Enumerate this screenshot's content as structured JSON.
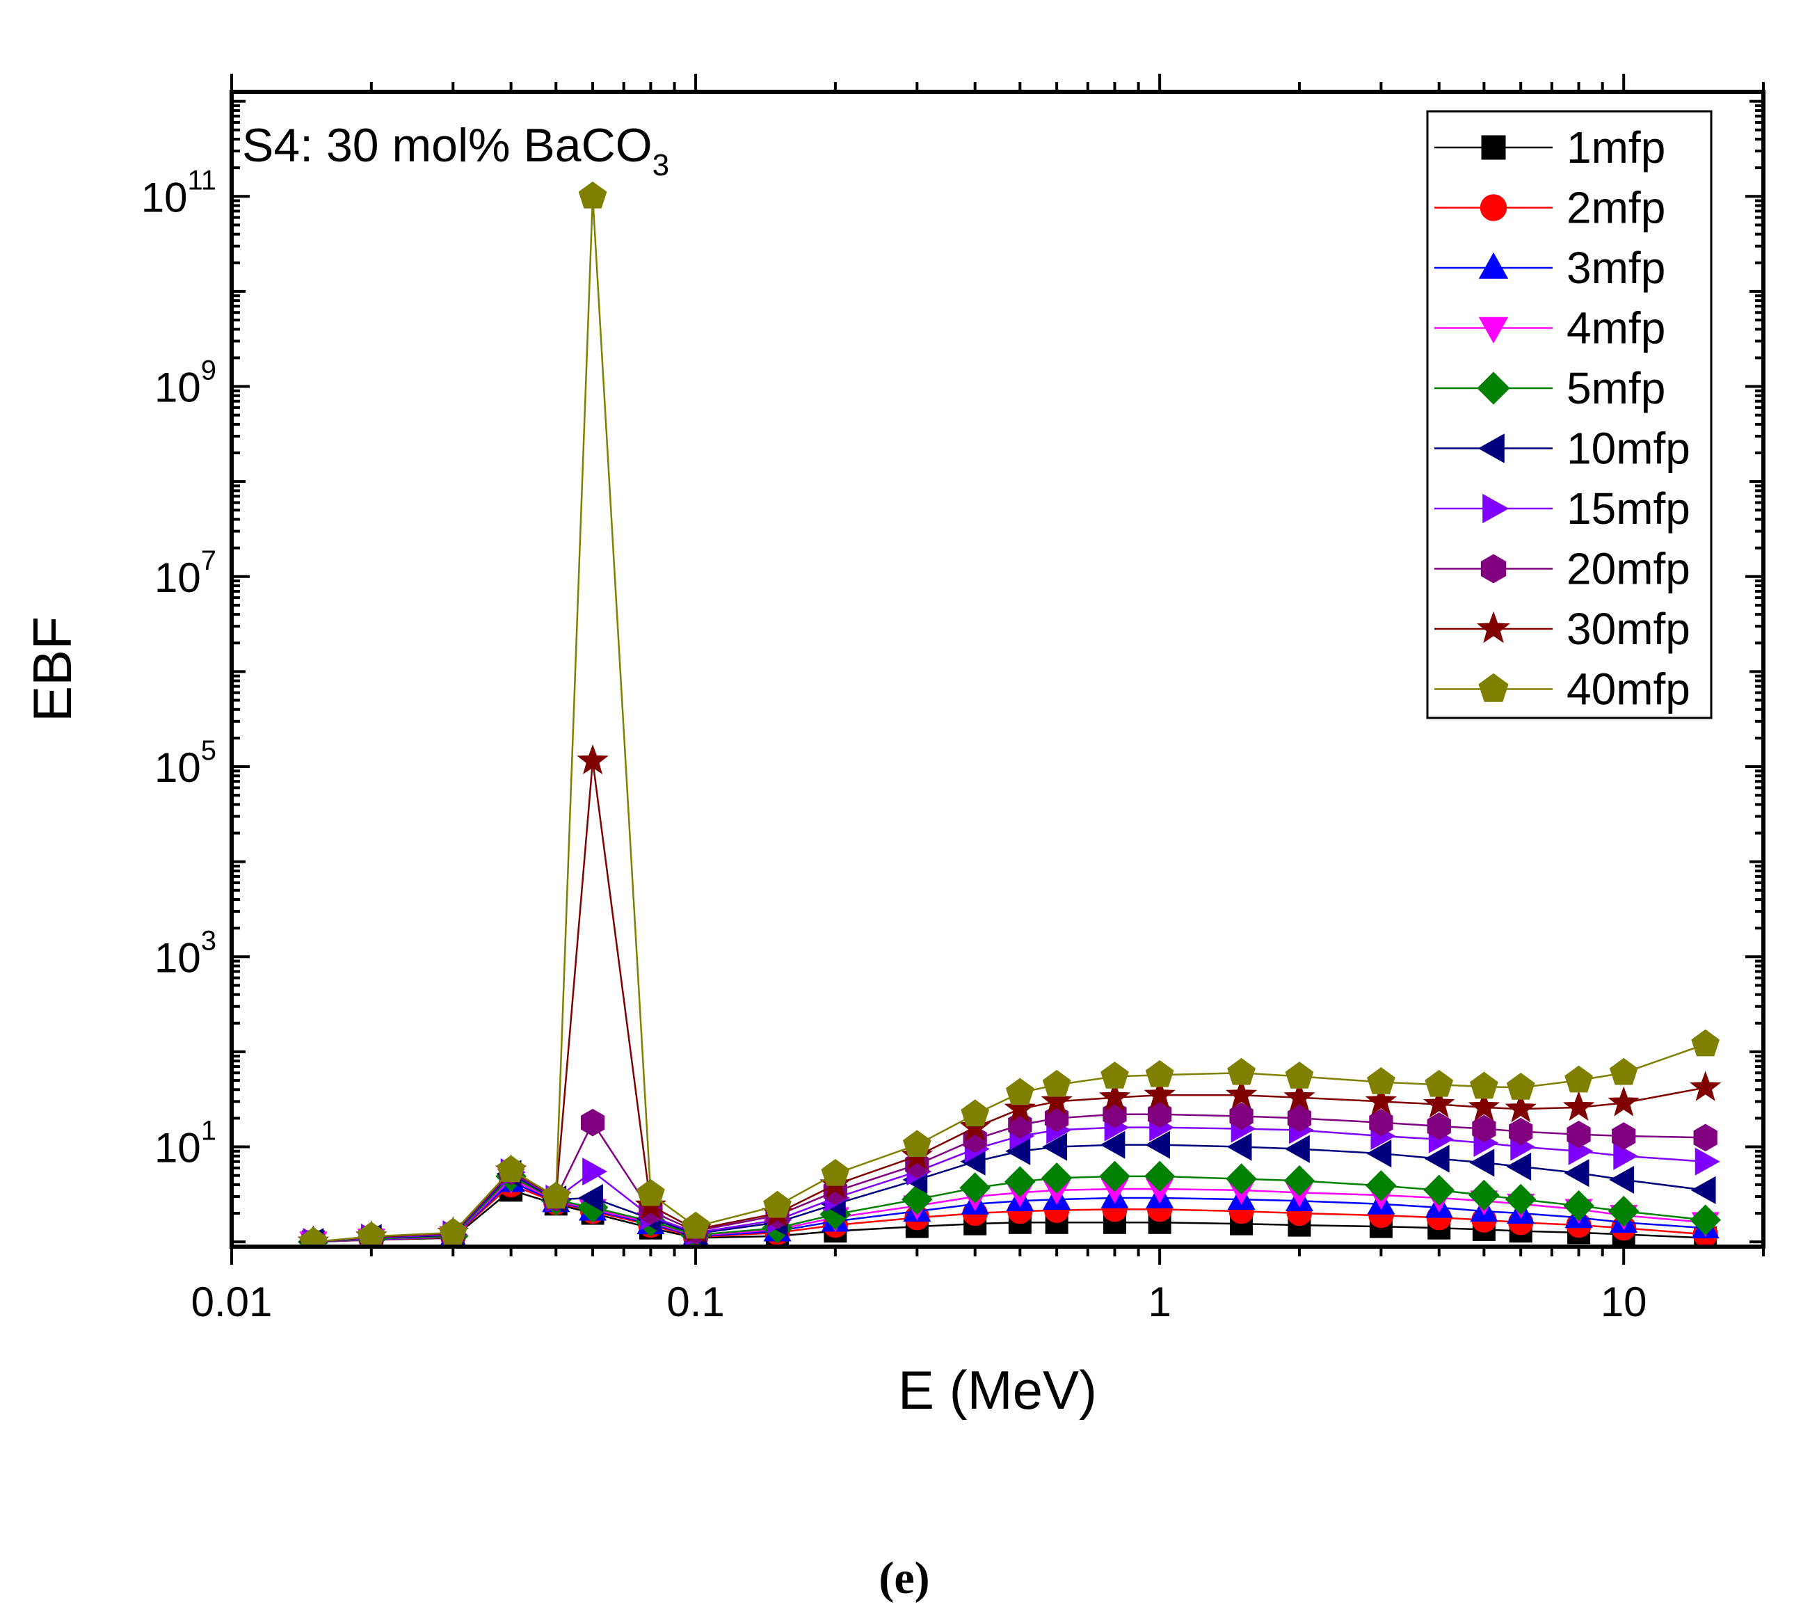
{
  "chart_data": {
    "type": "line",
    "title": "S4: 30 mol% BaCO",
    "title_subscript": "3",
    "caption": "(e)",
    "xlabel": "E (MeV)",
    "ylabel": "EBF",
    "xscale": "log",
    "yscale": "log",
    "xlim": [
      0.01,
      20
    ],
    "ylim_exponent": [
      -0.05,
      12.1
    ],
    "x_ticks": [
      {
        "value": 0.01,
        "label": "0.01"
      },
      {
        "value": 0.1,
        "label": "0.1"
      },
      {
        "value": 1,
        "label": "1"
      },
      {
        "value": 10,
        "label": "10"
      }
    ],
    "y_ticks": [
      {
        "exponent": 1,
        "base": "10",
        "sup": "1"
      },
      {
        "exponent": 3,
        "base": "10",
        "sup": "3"
      },
      {
        "exponent": 5,
        "base": "10",
        "sup": "5"
      },
      {
        "exponent": 7,
        "base": "10",
        "sup": "7"
      },
      {
        "exponent": 9,
        "base": "10",
        "sup": "9"
      },
      {
        "exponent": 11,
        "base": "10",
        "sup": "11"
      }
    ],
    "legend_position": "top-right",
    "x": [
      0.015,
      0.02,
      0.03,
      0.04,
      0.05,
      0.06,
      0.08,
      0.1,
      0.15,
      0.2,
      0.3,
      0.4,
      0.5,
      0.6,
      0.8,
      1,
      1.5,
      2,
      3,
      4,
      5,
      6,
      8,
      10,
      15
    ],
    "series": [
      {
        "name": "1mfp",
        "color": "#000000",
        "marker": "square",
        "values": [
          1.0,
          1.05,
          1.1,
          3.5,
          2.5,
          2.0,
          1.4,
          1.1,
          1.15,
          1.3,
          1.45,
          1.55,
          1.6,
          1.6,
          1.6,
          1.6,
          1.55,
          1.5,
          1.45,
          1.4,
          1.35,
          1.3,
          1.25,
          1.2,
          1.1
        ]
      },
      {
        "name": "2mfp",
        "color": "#ff0000",
        "marker": "circle",
        "values": [
          1.0,
          1.05,
          1.12,
          4.0,
          2.6,
          2.1,
          1.5,
          1.12,
          1.25,
          1.5,
          1.8,
          2.0,
          2.1,
          2.15,
          2.2,
          2.2,
          2.1,
          2.0,
          1.9,
          1.8,
          1.7,
          1.6,
          1.5,
          1.4,
          1.2
        ]
      },
      {
        "name": "3mfp",
        "color": "#0000ff",
        "marker": "triangle-up",
        "values": [
          1.0,
          1.06,
          1.13,
          4.3,
          2.65,
          2.15,
          1.55,
          1.14,
          1.3,
          1.65,
          2.1,
          2.5,
          2.7,
          2.8,
          2.9,
          2.9,
          2.8,
          2.7,
          2.5,
          2.3,
          2.1,
          2.0,
          1.8,
          1.6,
          1.4
        ]
      },
      {
        "name": "4mfp",
        "color": "#ff00ff",
        "marker": "triangle-down",
        "values": [
          1.0,
          1.07,
          1.14,
          4.6,
          2.7,
          2.2,
          1.6,
          1.16,
          1.35,
          1.8,
          2.4,
          3.0,
          3.3,
          3.5,
          3.6,
          3.6,
          3.5,
          3.3,
          3.1,
          2.9,
          2.7,
          2.5,
          2.2,
          1.9,
          1.6
        ]
      },
      {
        "name": "5mfp",
        "color": "#008000",
        "marker": "diamond",
        "values": [
          1.0,
          1.08,
          1.15,
          4.9,
          2.75,
          2.3,
          1.65,
          1.18,
          1.4,
          1.95,
          2.8,
          3.7,
          4.3,
          4.7,
          4.9,
          4.9,
          4.6,
          4.4,
          3.9,
          3.5,
          3.1,
          2.8,
          2.4,
          2.1,
          1.7
        ]
      },
      {
        "name": "10mfp",
        "color": "#00007f",
        "marker": "triangle-left",
        "values": [
          1.0,
          1.1,
          1.18,
          5.2,
          2.8,
          2.9,
          1.75,
          1.22,
          1.6,
          2.5,
          4.5,
          7.0,
          9.0,
          10.0,
          10.5,
          10.5,
          10.0,
          9.5,
          8.5,
          7.5,
          6.8,
          6.2,
          5.3,
          4.5,
          3.5
        ]
      },
      {
        "name": "15mfp",
        "color": "#8000ff",
        "marker": "triangle-right",
        "values": [
          1.0,
          1.11,
          1.2,
          5.4,
          2.85,
          5.5,
          1.85,
          1.25,
          1.7,
          2.9,
          5.5,
          9.5,
          13.0,
          15.0,
          16.0,
          16.0,
          15.5,
          15.0,
          13.0,
          12.0,
          11.0,
          10.0,
          9.0,
          8.0,
          7.0
        ]
      },
      {
        "name": "20mfp",
        "color": "#800080",
        "marker": "hexagon",
        "values": [
          1.0,
          1.12,
          1.22,
          5.5,
          2.9,
          18.0,
          2.1,
          1.3,
          1.9,
          3.4,
          6.5,
          12.0,
          17.0,
          20.0,
          22.0,
          22.0,
          21.0,
          20.0,
          18.0,
          16.5,
          15.5,
          14.5,
          13.5,
          13.0,
          12.5
        ]
      },
      {
        "name": "30mfp",
        "color": "#800000",
        "marker": "star",
        "values": [
          1.0,
          1.13,
          1.24,
          5.6,
          2.95,
          115000,
          2.4,
          1.35,
          2.0,
          4.0,
          8.0,
          16.0,
          25.0,
          30.0,
          33.0,
          35.0,
          35.0,
          33.0,
          30.0,
          28.0,
          26.0,
          25.0,
          26.0,
          29.0,
          42.0
        ]
      },
      {
        "name": "40mfp",
        "color": "#808000",
        "marker": "pentagon",
        "values": [
          1.0,
          1.14,
          1.25,
          5.7,
          3.0,
          100000000000,
          3.2,
          1.45,
          2.4,
          5.2,
          10.5,
          22.0,
          37.0,
          45.0,
          55.0,
          57.0,
          60.0,
          55.0,
          48.0,
          45.0,
          43.0,
          42.0,
          50.0,
          60.0,
          120.0
        ]
      }
    ]
  }
}
